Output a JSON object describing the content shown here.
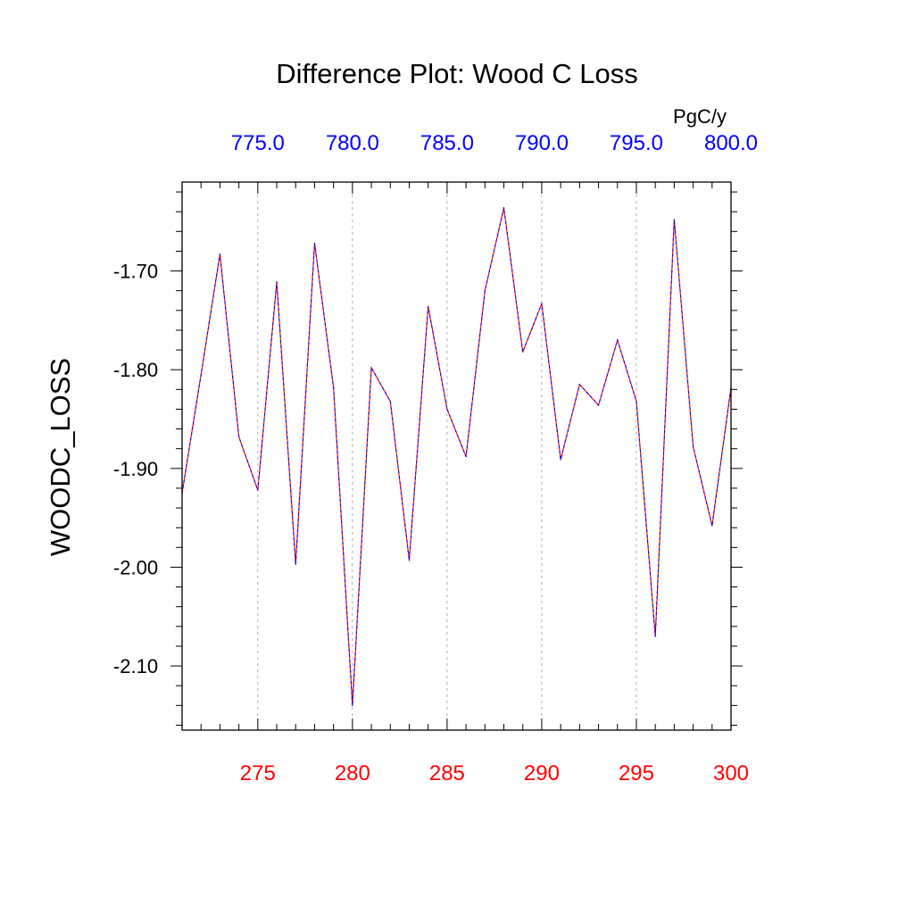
{
  "chart_data": {
    "type": "line",
    "title": "Difference Plot: Wood C Loss",
    "ylabel": "WOODC_LOSS",
    "units": "PgC/y",
    "xlim": [
      271,
      300
    ],
    "ylim": [
      -2.165,
      -1.61
    ],
    "y_ticks": [
      "-1.70",
      "-1.80",
      "-1.90",
      "-2.00",
      "-2.10"
    ],
    "y_tick_values": [
      -1.7,
      -1.8,
      -1.9,
      -2.0,
      -2.1
    ],
    "x_ticks_bottom": [
      "275",
      "280",
      "285",
      "290",
      "295",
      "300"
    ],
    "x_ticks_bottom_values": [
      275,
      280,
      285,
      290,
      295,
      300
    ],
    "x_ticks_top": [
      "775.0",
      "780.0",
      "785.0",
      "790.0",
      "795.0",
      "800.0"
    ],
    "grid": "vertical-dashed",
    "colors": {
      "bottom_axis_labels": "#ff0000",
      "top_axis_labels": "#0000ff",
      "series_a": "#ff0000",
      "series_b": "#0000ff"
    },
    "x": [
      271,
      272,
      273,
      274,
      275,
      276,
      277,
      278,
      279,
      280,
      281,
      282,
      283,
      284,
      285,
      286,
      287,
      288,
      289,
      290,
      291,
      292,
      293,
      294,
      295,
      296,
      297,
      298,
      299,
      300
    ],
    "series": [
      {
        "color": "#ff0000",
        "values": [
          -1.925,
          -1.805,
          -1.683,
          -1.868,
          -1.922,
          -1.711,
          -1.997,
          -1.672,
          -1.818,
          -2.14,
          -1.798,
          -1.832,
          -1.993,
          -1.736,
          -1.84,
          -1.888,
          -1.72,
          -1.636,
          -1.782,
          -1.733,
          -1.891,
          -1.815,
          -1.836,
          -1.77,
          -1.832,
          -2.07,
          -1.648,
          -1.878,
          -1.958,
          -1.818
        ]
      },
      {
        "color": "#0000ff",
        "values": [
          -1.925,
          -1.805,
          -1.683,
          -1.868,
          -1.922,
          -1.711,
          -1.997,
          -1.672,
          -1.818,
          -2.14,
          -1.798,
          -1.832,
          -1.993,
          -1.736,
          -1.84,
          -1.888,
          -1.72,
          -1.636,
          -1.782,
          -1.733,
          -1.891,
          -1.815,
          -1.836,
          -1.77,
          -1.832,
          -2.07,
          -1.648,
          -1.878,
          -1.958,
          -1.818
        ]
      }
    ]
  }
}
